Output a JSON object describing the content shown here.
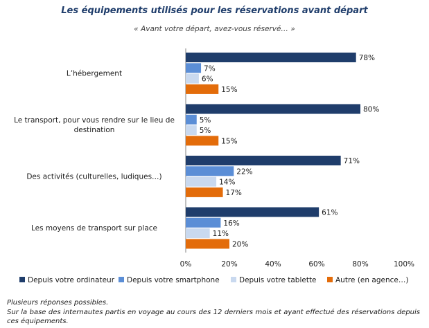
{
  "header": {
    "title": "Les équipements utilisés pour les réservations avant départ",
    "subtitle": "« Avant votre départ, avez-vous réservé… »"
  },
  "chart_data": {
    "type": "bar",
    "orientation": "horizontal",
    "title": "Les équipements utilisés pour les réservations avant départ",
    "subtitle": "« Avant votre départ, avez-vous réservé… »",
    "categories": [
      [
        "L’hébergement"
      ],
      [
        "Le transport, pour vous rendre sur le lieu de",
        "destination"
      ],
      [
        "Des activités (culturelles, ludiques…)"
      ],
      [
        "Les moyens de transport sur place"
      ]
    ],
    "series": [
      {
        "name": "Depuis votre ordinateur",
        "color": "#1F3D6B",
        "values": [
          78,
          80,
          71,
          61
        ]
      },
      {
        "name": "Depuis votre smartphone",
        "color": "#5B8ED6",
        "values": [
          7,
          5,
          22,
          16
        ]
      },
      {
        "name": "Depuis votre tablette",
        "color": "#C9D9EF",
        "values": [
          6,
          5,
          14,
          11
        ]
      },
      {
        "name": "Autre (en agence…)",
        "color": "#E36C0A",
        "values": [
          15,
          15,
          17,
          20
        ]
      }
    ],
    "xlim": [
      0,
      100
    ],
    "xticks": [
      "0%",
      "20%",
      "40%",
      "60%",
      "80%",
      "100%"
    ],
    "value_suffix": "%",
    "legend_position": "bottom",
    "grid": false
  },
  "notes": {
    "line1": "Plusieurs réponses possibles.",
    "line2": "Sur la base des internautes partis en voyage au cours des 12 derniers mois et ayant effectué des réservations depuis ces équipements."
  }
}
